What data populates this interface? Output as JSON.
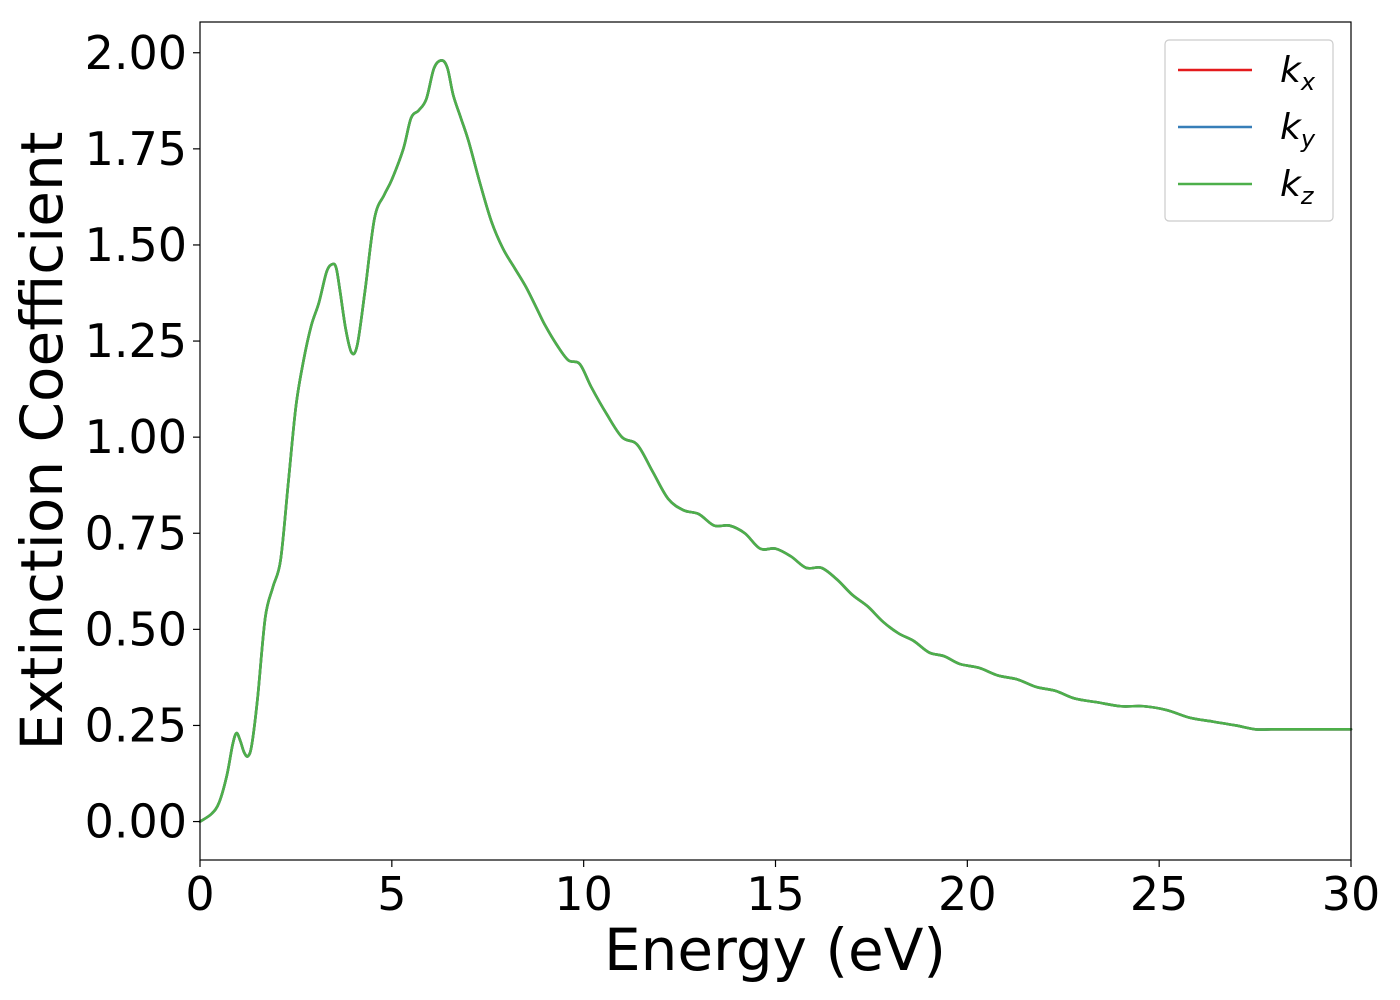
{
  "chart_data": {
    "type": "line",
    "title": "",
    "xlabel": "Energy (eV)",
    "ylabel": "Extinction Coefficient",
    "xlim": [
      0,
      30
    ],
    "ylim": [
      -0.1,
      2.08
    ],
    "xticks": [
      0,
      5,
      10,
      15,
      20,
      25,
      30
    ],
    "yticks": [
      0.0,
      0.25,
      0.5,
      0.75,
      1.0,
      1.25,
      1.5,
      1.75,
      2.0
    ],
    "xtick_labels": [
      "0",
      "5",
      "10",
      "15",
      "20",
      "25",
      "30"
    ],
    "ytick_labels": [
      "0.00",
      "0.25",
      "0.50",
      "0.75",
      "1.00",
      "1.25",
      "1.50",
      "1.75",
      "2.00"
    ],
    "grid": false,
    "legend_position": "top-right",
    "x": [
      0,
      0.3,
      0.5,
      0.7,
      0.85,
      0.95,
      1.05,
      1.15,
      1.25,
      1.35,
      1.5,
      1.7,
      1.9,
      2.1,
      2.3,
      2.5,
      2.7,
      2.9,
      3.1,
      3.3,
      3.45,
      3.55,
      3.65,
      3.8,
      3.95,
      4.1,
      4.3,
      4.55,
      4.8,
      5.0,
      5.3,
      5.5,
      5.7,
      5.9,
      6.1,
      6.3,
      6.45,
      6.6,
      6.8,
      7.0,
      7.3,
      7.6,
      7.9,
      8.2,
      8.5,
      8.8,
      9.0,
      9.3,
      9.6,
      9.9,
      10.2,
      10.6,
      11.0,
      11.4,
      11.8,
      12.2,
      12.6,
      13.0,
      13.4,
      13.8,
      14.2,
      14.6,
      15.0,
      15.4,
      15.8,
      16.2,
      16.6,
      17.0,
      17.4,
      17.8,
      18.2,
      18.6,
      19.0,
      19.4,
      19.8,
      20.3,
      20.8,
      21.3,
      21.8,
      22.3,
      22.8,
      23.4,
      24.0,
      24.6,
      25.2,
      25.8,
      26.4,
      27.0,
      27.5,
      28.0,
      28.5,
      29.0,
      29.5,
      30.0
    ],
    "series": [
      {
        "name": "k_x",
        "label_base": "k",
        "label_sub": "x",
        "color": "#e41a1c",
        "values": [
          0.0,
          0.02,
          0.05,
          0.12,
          0.2,
          0.23,
          0.21,
          0.18,
          0.17,
          0.2,
          0.32,
          0.53,
          0.61,
          0.68,
          0.88,
          1.08,
          1.2,
          1.29,
          1.35,
          1.43,
          1.45,
          1.44,
          1.38,
          1.28,
          1.22,
          1.24,
          1.38,
          1.57,
          1.63,
          1.67,
          1.75,
          1.83,
          1.85,
          1.88,
          1.96,
          1.98,
          1.96,
          1.89,
          1.83,
          1.77,
          1.66,
          1.56,
          1.49,
          1.44,
          1.39,
          1.33,
          1.29,
          1.24,
          1.2,
          1.19,
          1.13,
          1.06,
          1.0,
          0.98,
          0.91,
          0.84,
          0.81,
          0.8,
          0.77,
          0.77,
          0.75,
          0.71,
          0.71,
          0.69,
          0.66,
          0.66,
          0.63,
          0.59,
          0.56,
          0.52,
          0.49,
          0.47,
          0.44,
          0.43,
          0.41,
          0.4,
          0.38,
          0.37,
          0.35,
          0.34,
          0.32,
          0.31,
          0.3,
          0.3,
          0.29,
          0.27,
          0.26,
          0.25,
          0.24,
          0.24,
          0.24,
          0.24,
          0.24,
          0.24
        ]
      },
      {
        "name": "k_y",
        "label_base": "k",
        "label_sub": "y",
        "color": "#377eb8",
        "values": [
          0.0,
          0.02,
          0.05,
          0.12,
          0.2,
          0.23,
          0.21,
          0.18,
          0.17,
          0.2,
          0.32,
          0.53,
          0.61,
          0.68,
          0.88,
          1.08,
          1.2,
          1.29,
          1.35,
          1.43,
          1.45,
          1.44,
          1.38,
          1.28,
          1.22,
          1.24,
          1.38,
          1.57,
          1.63,
          1.67,
          1.75,
          1.83,
          1.85,
          1.88,
          1.96,
          1.98,
          1.96,
          1.89,
          1.83,
          1.77,
          1.66,
          1.56,
          1.49,
          1.44,
          1.39,
          1.33,
          1.29,
          1.24,
          1.2,
          1.19,
          1.13,
          1.06,
          1.0,
          0.98,
          0.91,
          0.84,
          0.81,
          0.8,
          0.77,
          0.77,
          0.75,
          0.71,
          0.71,
          0.69,
          0.66,
          0.66,
          0.63,
          0.59,
          0.56,
          0.52,
          0.49,
          0.47,
          0.44,
          0.43,
          0.41,
          0.4,
          0.38,
          0.37,
          0.35,
          0.34,
          0.32,
          0.31,
          0.3,
          0.3,
          0.29,
          0.27,
          0.26,
          0.25,
          0.24,
          0.24,
          0.24,
          0.24,
          0.24,
          0.24
        ]
      },
      {
        "name": "k_z",
        "label_base": "k",
        "label_sub": "z",
        "color": "#4daf4a",
        "values": [
          0.0,
          0.02,
          0.05,
          0.12,
          0.2,
          0.23,
          0.21,
          0.18,
          0.17,
          0.2,
          0.32,
          0.53,
          0.61,
          0.68,
          0.88,
          1.08,
          1.2,
          1.29,
          1.35,
          1.43,
          1.45,
          1.44,
          1.38,
          1.28,
          1.22,
          1.24,
          1.38,
          1.57,
          1.63,
          1.67,
          1.75,
          1.83,
          1.85,
          1.88,
          1.96,
          1.98,
          1.96,
          1.89,
          1.83,
          1.77,
          1.66,
          1.56,
          1.49,
          1.44,
          1.39,
          1.33,
          1.29,
          1.24,
          1.2,
          1.19,
          1.13,
          1.06,
          1.0,
          0.98,
          0.91,
          0.84,
          0.81,
          0.8,
          0.77,
          0.77,
          0.75,
          0.71,
          0.71,
          0.69,
          0.66,
          0.66,
          0.63,
          0.59,
          0.56,
          0.52,
          0.49,
          0.47,
          0.44,
          0.43,
          0.41,
          0.4,
          0.38,
          0.37,
          0.35,
          0.34,
          0.32,
          0.31,
          0.3,
          0.3,
          0.29,
          0.27,
          0.26,
          0.25,
          0.24,
          0.24,
          0.24,
          0.24,
          0.24,
          0.24
        ]
      }
    ]
  }
}
